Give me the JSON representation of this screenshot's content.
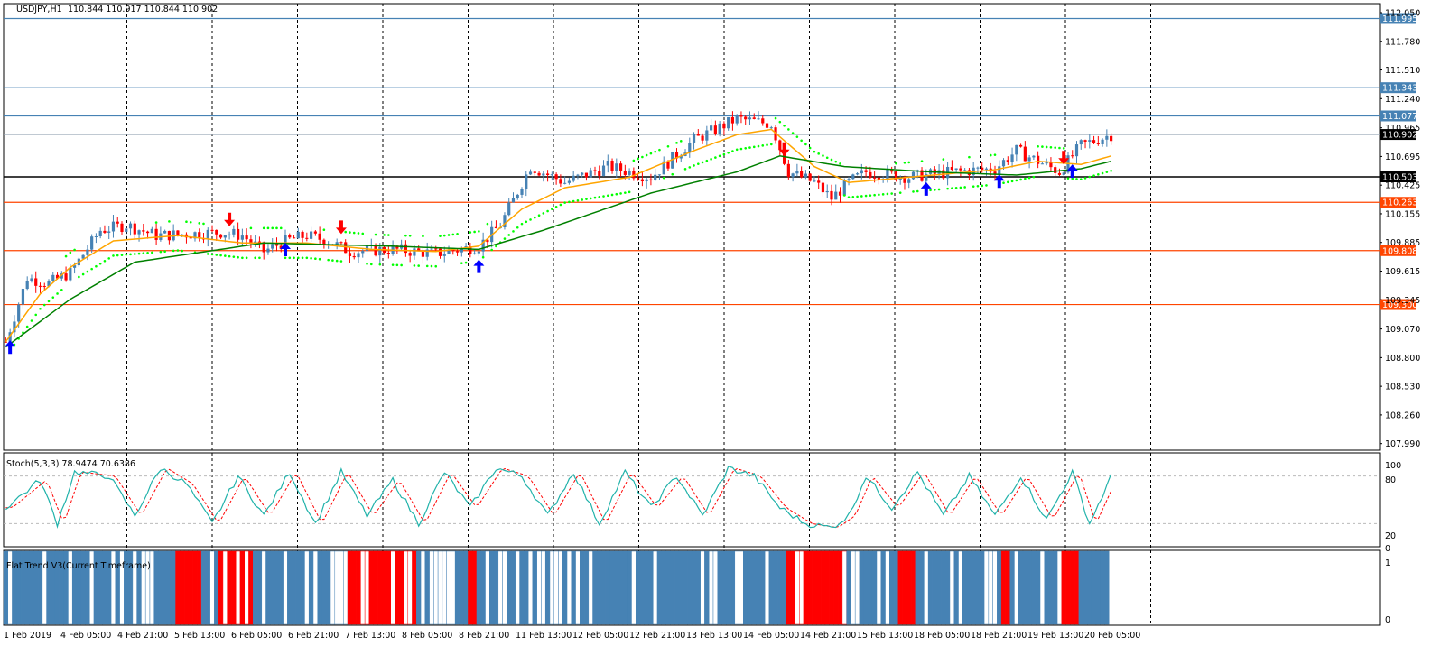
{
  "header": {
    "symbol": "USDJPY,H1",
    "ohlc": "110.844 110.917 110.844 110.902"
  },
  "stoch": {
    "title": "Stoch(5,3,3) 78.9474 70.6386",
    "levels": [
      "100",
      "80",
      "20",
      "0"
    ]
  },
  "flat_trend": {
    "title": "Flat Trend V3(Current Timeframe)",
    "levels": [
      "1",
      "0"
    ]
  },
  "colors": {
    "bull": "#4682b4",
    "bear": "#ff0000",
    "ma_fast": "#ffa500",
    "ma_slow": "#008000",
    "sar": "#00ff00",
    "resistance": "#4682b4",
    "support": "#ff4500",
    "pivot": "#000000",
    "stoch_main": "#20b2aa",
    "stoch_signal": "#ff0000",
    "arrow_up": "#0000ff",
    "arrow_down": "#ff0000"
  },
  "chart_data": [
    {
      "type": "candlestick",
      "symbol": "USDJPY",
      "timeframe": "H1",
      "y_ticks": [
        "112.050",
        "111.780",
        "111.510",
        "111.240",
        "110.965",
        "110.695",
        "110.425",
        "110.155",
        "109.885",
        "109.615",
        "109.345",
        "109.070",
        "108.800",
        "108.530",
        "108.260",
        "107.990"
      ],
      "ylim": [
        107.99,
        112.05
      ],
      "x_ticks": [
        "1 Feb 2019",
        "4 Feb 05:00",
        "4 Feb 21:00",
        "5 Feb 13:00",
        "6 Feb 05:00",
        "6 Feb 21:00",
        "7 Feb 13:00",
        "8 Feb 05:00",
        "8 Feb 21:00",
        "11 Feb 13:00",
        "12 Feb 05:00",
        "12 Feb 21:00",
        "13 Feb 13:00",
        "14 Feb 05:00",
        "14 Feb 21:00",
        "15 Feb 13:00",
        "18 Feb 05:00",
        "18 Feb 21:00",
        "19 Feb 13:00",
        "20 Feb 05:00"
      ],
      "horizontal_levels": [
        {
          "value": 111.995,
          "label": "111.995",
          "kind": "resistance"
        },
        {
          "value": 111.343,
          "label": "111.343",
          "kind": "resistance"
        },
        {
          "value": 111.077,
          "label": "111.077",
          "kind": "resistance"
        },
        {
          "value": 110.902,
          "label": "110.902",
          "kind": "current"
        },
        {
          "value": 110.503,
          "label": "110.503",
          "kind": "pivot"
        },
        {
          "value": 110.263,
          "label": "110.263",
          "kind": "support"
        },
        {
          "value": 109.808,
          "label": "109.808",
          "kind": "support"
        },
        {
          "value": 109.3,
          "label": "109.300",
          "kind": "support"
        }
      ],
      "price_path": [
        [
          0,
          108.95
        ],
        [
          5,
          109.55
        ],
        [
          10,
          109.5
        ],
        [
          15,
          109.6
        ],
        [
          22,
          110.0
        ],
        [
          28,
          110.05
        ],
        [
          35,
          109.95
        ],
        [
          50,
          109.98
        ],
        [
          55,
          109.95
        ],
        [
          60,
          109.8
        ],
        [
          65,
          109.9
        ],
        [
          70,
          109.95
        ],
        [
          75,
          109.9
        ],
        [
          80,
          109.8
        ],
        [
          90,
          109.82
        ],
        [
          100,
          109.78
        ],
        [
          110,
          109.85
        ],
        [
          115,
          110.05
        ],
        [
          122,
          110.6
        ],
        [
          130,
          110.45
        ],
        [
          140,
          110.6
        ],
        [
          150,
          110.5
        ],
        [
          160,
          110.85
        ],
        [
          170,
          111.05
        ],
        [
          178,
          111.0
        ],
        [
          182,
          110.55
        ],
        [
          188,
          110.45
        ],
        [
          192,
          110.3
        ],
        [
          196,
          110.45
        ],
        [
          200,
          110.55
        ],
        [
          210,
          110.5
        ],
        [
          220,
          110.55
        ],
        [
          230,
          110.58
        ],
        [
          235,
          110.75
        ],
        [
          240,
          110.65
        ],
        [
          245,
          110.55
        ],
        [
          250,
          110.8
        ],
        [
          257,
          110.9
        ]
      ],
      "ma_fast_path": [
        [
          0,
          108.95
        ],
        [
          8,
          109.4
        ],
        [
          15,
          109.65
        ],
        [
          25,
          109.9
        ],
        [
          40,
          109.95
        ],
        [
          55,
          109.88
        ],
        [
          70,
          109.88
        ],
        [
          85,
          109.82
        ],
        [
          100,
          109.8
        ],
        [
          110,
          109.85
        ],
        [
          120,
          110.2
        ],
        [
          130,
          110.4
        ],
        [
          145,
          110.5
        ],
        [
          160,
          110.75
        ],
        [
          170,
          110.9
        ],
        [
          178,
          110.95
        ],
        [
          188,
          110.6
        ],
        [
          196,
          110.45
        ],
        [
          210,
          110.5
        ],
        [
          230,
          110.57
        ],
        [
          240,
          110.65
        ],
        [
          250,
          110.62
        ],
        [
          257,
          110.7
        ]
      ],
      "ma_slow_path": [
        [
          0,
          108.9
        ],
        [
          15,
          109.35
        ],
        [
          30,
          109.7
        ],
        [
          60,
          109.88
        ],
        [
          90,
          109.85
        ],
        [
          110,
          109.82
        ],
        [
          125,
          110.0
        ],
        [
          150,
          110.35
        ],
        [
          170,
          110.55
        ],
        [
          180,
          110.7
        ],
        [
          195,
          110.6
        ],
        [
          215,
          110.55
        ],
        [
          235,
          110.52
        ],
        [
          250,
          110.58
        ],
        [
          257,
          110.65
        ]
      ],
      "signals": [
        {
          "i": 1,
          "dir": "up"
        },
        {
          "i": 52,
          "dir": "down"
        },
        {
          "i": 65,
          "dir": "up"
        },
        {
          "i": 78,
          "dir": "down"
        },
        {
          "i": 110,
          "dir": "up"
        },
        {
          "i": 181,
          "dir": "down"
        },
        {
          "i": 214,
          "dir": "up"
        },
        {
          "i": 231,
          "dir": "up"
        },
        {
          "i": 246,
          "dir": "down"
        },
        {
          "i": 248,
          "dir": "up"
        }
      ]
    },
    {
      "type": "line",
      "name": "Stoch(5,3,3)",
      "ylim": [
        0,
        100
      ],
      "main_last": 78.9474,
      "signal_last": 70.6386,
      "key_points": [
        [
          0,
          40
        ],
        [
          8,
          75
        ],
        [
          12,
          20
        ],
        [
          16,
          85
        ],
        [
          24,
          80
        ],
        [
          30,
          30
        ],
        [
          36,
          90
        ],
        [
          42,
          70
        ],
        [
          48,
          20
        ],
        [
          54,
          80
        ],
        [
          60,
          30
        ],
        [
          66,
          85
        ],
        [
          72,
          20
        ],
        [
          78,
          85
        ],
        [
          84,
          30
        ],
        [
          90,
          75
        ],
        [
          96,
          20
        ],
        [
          102,
          85
        ],
        [
          108,
          40
        ],
        [
          114,
          90
        ],
        [
          120,
          80
        ],
        [
          126,
          30
        ],
        [
          132,
          85
        ],
        [
          138,
          20
        ],
        [
          144,
          85
        ],
        [
          150,
          40
        ],
        [
          156,
          80
        ],
        [
          162,
          30
        ],
        [
          168,
          90
        ],
        [
          174,
          80
        ],
        [
          180,
          40
        ],
        [
          186,
          20
        ],
        [
          192,
          15
        ],
        [
          196,
          30
        ],
        [
          200,
          80
        ],
        [
          206,
          40
        ],
        [
          212,
          85
        ],
        [
          218,
          30
        ],
        [
          224,
          80
        ],
        [
          230,
          30
        ],
        [
          236,
          80
        ],
        [
          242,
          25
        ],
        [
          248,
          85
        ],
        [
          252,
          20
        ],
        [
          257,
          79
        ]
      ]
    },
    {
      "type": "bar",
      "name": "Flat Trend V3",
      "ylim": [
        0,
        1
      ],
      "segments": [
        [
          0,
          40,
          "blue"
        ],
        [
          40,
          46,
          "red"
        ],
        [
          46,
          50,
          "blue"
        ],
        [
          50,
          58,
          "red"
        ],
        [
          58,
          80,
          "blue"
        ],
        [
          80,
          96,
          "red"
        ],
        [
          96,
          108,
          "blue"
        ],
        [
          108,
          110,
          "red"
        ],
        [
          110,
          182,
          "blue"
        ],
        [
          182,
          196,
          "red"
        ],
        [
          196,
          208,
          "blue"
        ],
        [
          208,
          212,
          "red"
        ],
        [
          212,
          232,
          "blue"
        ],
        [
          232,
          234,
          "red"
        ],
        [
          234,
          246,
          "blue"
        ],
        [
          246,
          250,
          "red"
        ],
        [
          250,
          257,
          "blue"
        ]
      ]
    }
  ]
}
